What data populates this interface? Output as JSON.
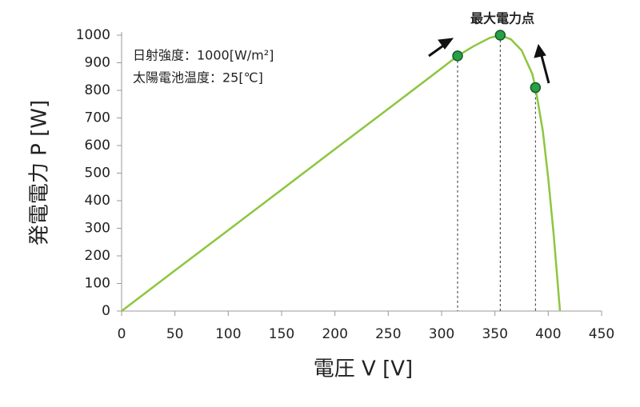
{
  "chart_data": {
    "type": "line",
    "x_label": "電圧 V [V]",
    "y_label": "発電電力 P [W]",
    "annotations": [
      "日射強度：1000[W/m²]",
      "太陽電池温度：25[℃]",
      "最大電力点"
    ],
    "x": [
      0,
      50,
      100,
      150,
      200,
      250,
      300,
      315,
      330,
      345,
      355,
      365,
      375,
      385,
      388,
      395,
      400,
      405,
      411
    ],
    "series": [
      {
        "color": "#8dc63f",
        "values": [
          0,
          147,
          293,
          440,
          587,
          733,
          880,
          925,
          960,
          990,
          1000,
          985,
          945,
          860,
          810,
          650,
          480,
          280,
          0
        ]
      }
    ],
    "points": {
      "color": "#27a046",
      "x": [
        315,
        355,
        388
      ],
      "y": [
        925,
        1000,
        810
      ]
    },
    "xlim": [
      0,
      450
    ],
    "xticks": [
      0,
      50,
      100,
      150,
      200,
      250,
      300,
      350,
      400,
      450
    ],
    "ylim": [
      0,
      1000
    ],
    "yticks": [
      0,
      100,
      200,
      300,
      400,
      500,
      600,
      700,
      800,
      900,
      1000
    ],
    "grid": false
  }
}
